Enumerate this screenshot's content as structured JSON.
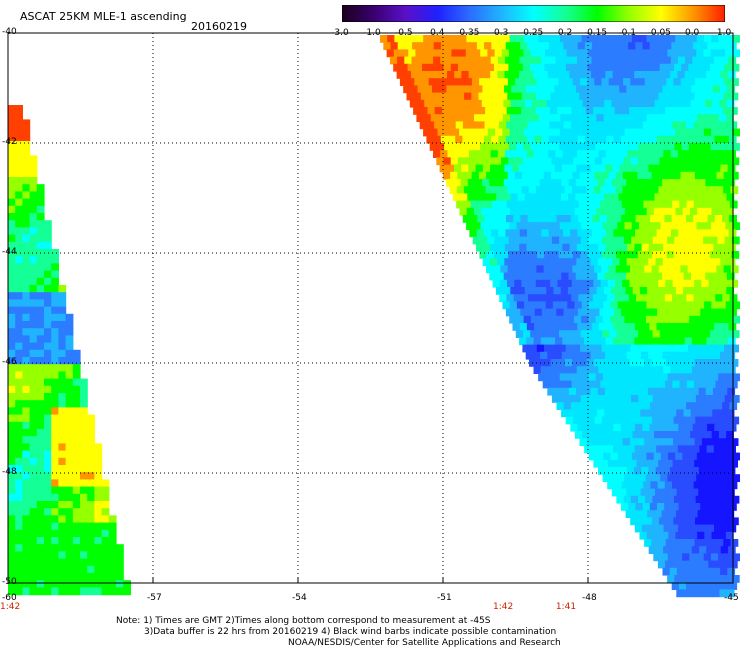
{
  "header": {
    "title": "ASCAT 25KM MLE-1 ascending",
    "date": "20160219"
  },
  "colorbar": {
    "tick_labels": [
      "-3.0",
      "-1.0",
      "-0.5",
      "-0.4",
      "-0.35",
      "-0.3",
      "-0.25",
      "-0.2",
      "-0.15",
      "-0.1",
      "-0.05",
      "0.0",
      "1.0"
    ],
    "colors": [
      "#1a001a",
      "#3a0070",
      "#5a10c8",
      "#2020ff",
      "#2c6cff",
      "#20b4ff",
      "#00ffff",
      "#14ff96",
      "#00ff00",
      "#96ff00",
      "#ffff00",
      "#ff9600",
      "#ff1e00"
    ]
  },
  "map": {
    "lat_labels": [
      "-40",
      "-42",
      "-44",
      "-46",
      "-48",
      "-50"
    ],
    "lon_labels": [
      "-60",
      "-57",
      "-54",
      "-51",
      "-48",
      "-45"
    ],
    "pass_times": [
      {
        "label": "1:42",
        "lon": -60
      },
      {
        "label": "1:42",
        "lon": -49.8
      },
      {
        "label": "1:41",
        "lon": -48.5
      }
    ]
  },
  "footer": {
    "line1": "Note: 1) Times are GMT 2)Times along bottom correspond to measurement at -45S",
    "line2": "3)Data buffer is 22 hrs from 20160219 4) Black wind barbs indicate possible contamination",
    "line3": "NOAA/NESDIS/Center for Satellite Applications and Research"
  }
}
